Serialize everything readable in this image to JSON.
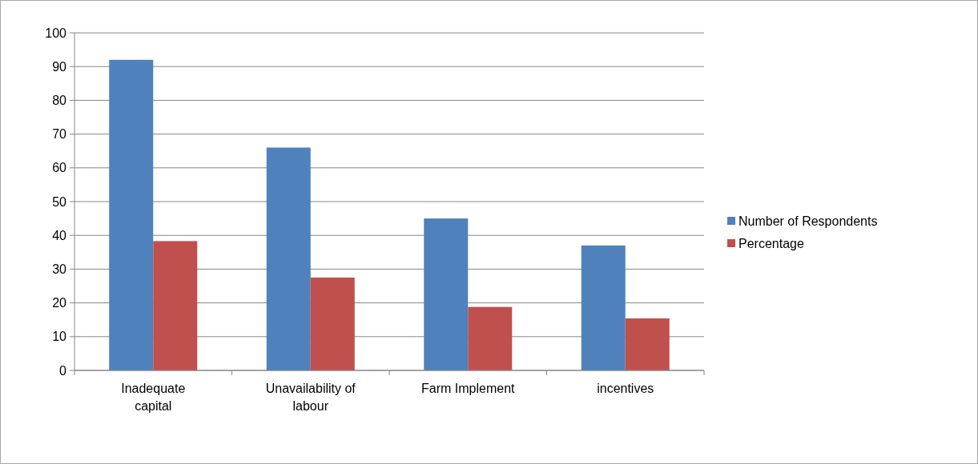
{
  "chart_data": {
    "type": "bar",
    "categories": [
      "Inadequate capital",
      "Unavailability of labour",
      "Farm Implement",
      "incentives"
    ],
    "series": [
      {
        "name": "Number of Respondents",
        "color": "#4f81bd",
        "values": [
          92,
          66,
          45,
          37
        ]
      },
      {
        "name": "Percentage",
        "color": "#c0504d",
        "values": [
          38.3,
          27.5,
          18.8,
          15.4
        ]
      }
    ],
    "ylim": [
      0,
      100
    ],
    "yticks": [
      0,
      10,
      20,
      30,
      40,
      50,
      60,
      70,
      80,
      90,
      100
    ],
    "grid": "y",
    "legend": "right"
  }
}
